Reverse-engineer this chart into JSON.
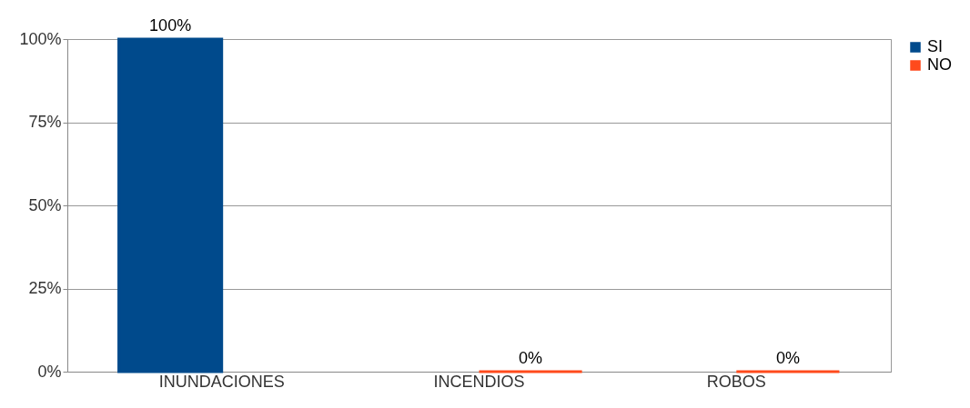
{
  "chart_data": {
    "type": "bar",
    "categories": [
      "INUNDACIONES",
      "INCENDIOS",
      "ROBOS"
    ],
    "series": [
      {
        "name": "SI",
        "color": "#004a8c",
        "values": [
          100,
          null,
          null
        ],
        "value_labels": [
          "100%",
          null,
          null
        ]
      },
      {
        "name": "NO",
        "color": "#ff4a1c",
        "values": [
          null,
          0,
          0
        ],
        "value_labels": [
          null,
          "0%",
          "0%"
        ]
      }
    ],
    "ylim": [
      0,
      100
    ],
    "yticks": [
      {
        "value": 0,
        "label": "0%"
      },
      {
        "value": 25,
        "label": "25%"
      },
      {
        "value": 50,
        "label": "50%"
      },
      {
        "value": 75,
        "label": "75%"
      },
      {
        "value": 100,
        "label": "100%"
      }
    ],
    "grid": "y",
    "legend": "right"
  }
}
